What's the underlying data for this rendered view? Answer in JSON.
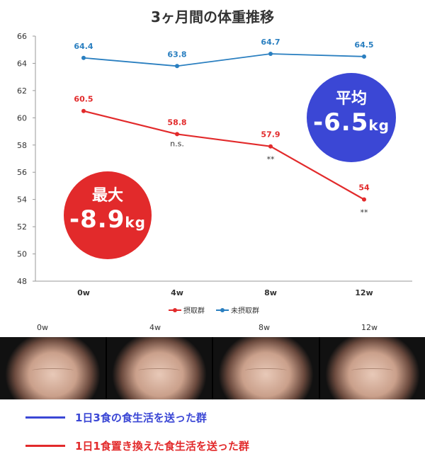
{
  "title": "3ヶ月間の体重推移",
  "badges": {
    "average": {
      "label": "平均",
      "value": "-6.5",
      "unit": "kg",
      "color": "#3b47d5"
    },
    "max": {
      "label": "最大",
      "value": "-8.9",
      "unit": "kg",
      "color": "#e22a2b"
    }
  },
  "chart_data": {
    "type": "line",
    "categories": [
      "0w",
      "4w",
      "8w",
      "12w"
    ],
    "ylim": [
      48,
      66
    ],
    "yticks": [
      48,
      50,
      52,
      54,
      56,
      58,
      60,
      62,
      64,
      66
    ],
    "grid": false,
    "legend_position": "bottom",
    "series": [
      {
        "name": "摂取群",
        "color": "#e22a2b",
        "values": [
          60.5,
          58.8,
          57.9,
          54
        ],
        "labels": [
          "60.5",
          "58.8",
          "57.9",
          "54"
        ],
        "significance": [
          "",
          "n.s.",
          "**",
          "**"
        ]
      },
      {
        "name": "未摂取群",
        "color": "#2a7fc0",
        "values": [
          64.4,
          63.8,
          64.7,
          64.5
        ],
        "labels": [
          "64.4",
          "63.8",
          "64.7",
          "64.5"
        ],
        "significance": [
          "",
          "",
          "",
          ""
        ]
      }
    ]
  },
  "photo_labels": [
    "0w",
    "4w",
    "8w",
    "12w"
  ],
  "groups": {
    "blue": {
      "label": "1日3食の食生活を送った群",
      "color": "#3b47d5"
    },
    "red": {
      "label": "1日1食置き換えた食生活を送った群",
      "color": "#e22a2b"
    }
  }
}
